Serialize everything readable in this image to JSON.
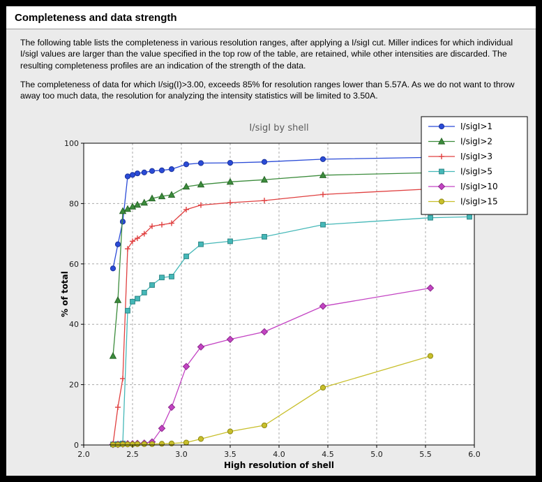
{
  "page": {
    "title": "Completeness and data strength",
    "paragraph1": "The following table lists the completeness in various resolution ranges, after applying a I/sigI cut. Miller indices for which individual I/sigI values are larger than the value specified in the top row of the table, are retained, while other intensities are discarded. The resulting completeness profiles are an indication of the strength of the data.",
    "paragraph2": "The completeness of data for which I/sig(I)>3.00, exceeds  85% for resolution ranges lower than 5.57A. As we do not want to throw away too much data, the resolution for analyzing the intensity statistics will be limited to 3.50A."
  },
  "chart_data": {
    "type": "line",
    "title": "I/sigI by shell",
    "xlabel": "High resolution of shell",
    "ylabel": "% of total",
    "xlim": [
      2.0,
      6.0
    ],
    "ylim": [
      0,
      100
    ],
    "xticks": [
      2.0,
      2.5,
      3.0,
      3.5,
      4.0,
      4.5,
      5.0,
      5.5,
      6.0
    ],
    "yticks": [
      0,
      20,
      40,
      60,
      80,
      100
    ],
    "grid": "dashed",
    "legend_position": "upper-right",
    "colors": {
      "plot_bg": "#ffffff",
      "figure_bg": "#ebebeb",
      "grid": "#a9a9a9",
      "axis": "#000000",
      "title_text": "#5a5a5a",
      "legend_bg": "#ffffff",
      "legend_border": "#000000"
    },
    "series": [
      {
        "name": "I/sigI>1",
        "color": "#2a4bd7",
        "edge": "#1c339c",
        "marker": "circle",
        "points": [
          [
            2.3,
            58.5
          ],
          [
            2.35,
            66.5
          ],
          [
            2.4,
            74.0
          ],
          [
            2.45,
            89.0
          ],
          [
            2.5,
            89.5
          ],
          [
            2.55,
            90.0
          ],
          [
            2.62,
            90.3
          ],
          [
            2.7,
            90.8
          ],
          [
            2.8,
            91.0
          ],
          [
            2.9,
            91.4
          ],
          [
            3.05,
            93.0
          ],
          [
            3.2,
            93.4
          ],
          [
            3.5,
            93.5
          ],
          [
            3.85,
            93.8
          ],
          [
            4.45,
            94.7
          ],
          [
            5.95,
            95.5
          ]
        ]
      },
      {
        "name": "I/sigI>2",
        "color": "#3c8c3c",
        "edge": "#286628",
        "marker": "triangle",
        "points": [
          [
            2.3,
            29.5
          ],
          [
            2.35,
            48.0
          ],
          [
            2.4,
            77.5
          ],
          [
            2.45,
            78.2
          ],
          [
            2.5,
            79.0
          ],
          [
            2.55,
            79.6
          ],
          [
            2.62,
            80.3
          ],
          [
            2.7,
            81.7
          ],
          [
            2.8,
            82.4
          ],
          [
            2.9,
            82.9
          ],
          [
            3.05,
            85.6
          ],
          [
            3.2,
            86.3
          ],
          [
            3.5,
            87.2
          ],
          [
            3.85,
            87.9
          ],
          [
            4.45,
            89.4
          ],
          [
            5.95,
            90.5
          ]
        ]
      },
      {
        "name": "I/sigI>3",
        "color": "#e04040",
        "edge": "#a82626",
        "marker": "plus",
        "points": [
          [
            2.3,
            0.3
          ],
          [
            2.35,
            12.5
          ],
          [
            2.4,
            22.0
          ],
          [
            2.45,
            65.0
          ],
          [
            2.5,
            67.5
          ],
          [
            2.55,
            68.5
          ],
          [
            2.62,
            70.0
          ],
          [
            2.7,
            72.5
          ],
          [
            2.8,
            73.0
          ],
          [
            2.9,
            73.5
          ],
          [
            3.05,
            78.0
          ],
          [
            3.2,
            79.5
          ],
          [
            3.5,
            80.3
          ],
          [
            3.85,
            81.0
          ],
          [
            4.45,
            83.0
          ],
          [
            5.95,
            85.5
          ]
        ]
      },
      {
        "name": "I/sigI>5",
        "color": "#45b8b8",
        "edge": "#2c8585",
        "marker": "square",
        "points": [
          [
            2.3,
            0.2
          ],
          [
            2.35,
            0.3
          ],
          [
            2.4,
            0.5
          ],
          [
            2.45,
            44.5
          ],
          [
            2.5,
            47.5
          ],
          [
            2.55,
            48.5
          ],
          [
            2.62,
            50.5
          ],
          [
            2.7,
            53.0
          ],
          [
            2.8,
            55.5
          ],
          [
            2.9,
            55.8
          ],
          [
            3.05,
            62.5
          ],
          [
            3.2,
            66.5
          ],
          [
            3.5,
            67.5
          ],
          [
            3.85,
            69.0
          ],
          [
            4.45,
            73.0
          ],
          [
            5.55,
            75.3
          ],
          [
            5.95,
            75.6
          ]
        ]
      },
      {
        "name": "I/sigI>10",
        "color": "#c343c3",
        "edge": "#8c2b8c",
        "marker": "diamond",
        "points": [
          [
            2.3,
            0.2
          ],
          [
            2.35,
            0.2
          ],
          [
            2.4,
            0.3
          ],
          [
            2.45,
            0.4
          ],
          [
            2.5,
            0.4
          ],
          [
            2.55,
            0.5
          ],
          [
            2.62,
            0.6
          ],
          [
            2.7,
            1.0
          ],
          [
            2.8,
            5.5
          ],
          [
            2.9,
            12.5
          ],
          [
            3.05,
            26.0
          ],
          [
            3.2,
            32.5
          ],
          [
            3.5,
            35.0
          ],
          [
            3.85,
            37.5
          ],
          [
            4.45,
            46.0
          ],
          [
            5.55,
            52.0
          ]
        ]
      },
      {
        "name": "I/sigI>15",
        "color": "#c8bf2b",
        "edge": "#918a14",
        "marker": "circle",
        "points": [
          [
            2.3,
            0.1
          ],
          [
            2.35,
            0.1
          ],
          [
            2.4,
            0.2
          ],
          [
            2.45,
            0.2
          ],
          [
            2.5,
            0.2
          ],
          [
            2.55,
            0.3
          ],
          [
            2.62,
            0.3
          ],
          [
            2.7,
            0.3
          ],
          [
            2.8,
            0.4
          ],
          [
            2.9,
            0.5
          ],
          [
            3.05,
            0.8
          ],
          [
            3.2,
            2.0
          ],
          [
            3.5,
            4.5
          ],
          [
            3.85,
            6.5
          ],
          [
            4.45,
            19.0
          ],
          [
            5.55,
            29.5
          ]
        ]
      }
    ]
  }
}
